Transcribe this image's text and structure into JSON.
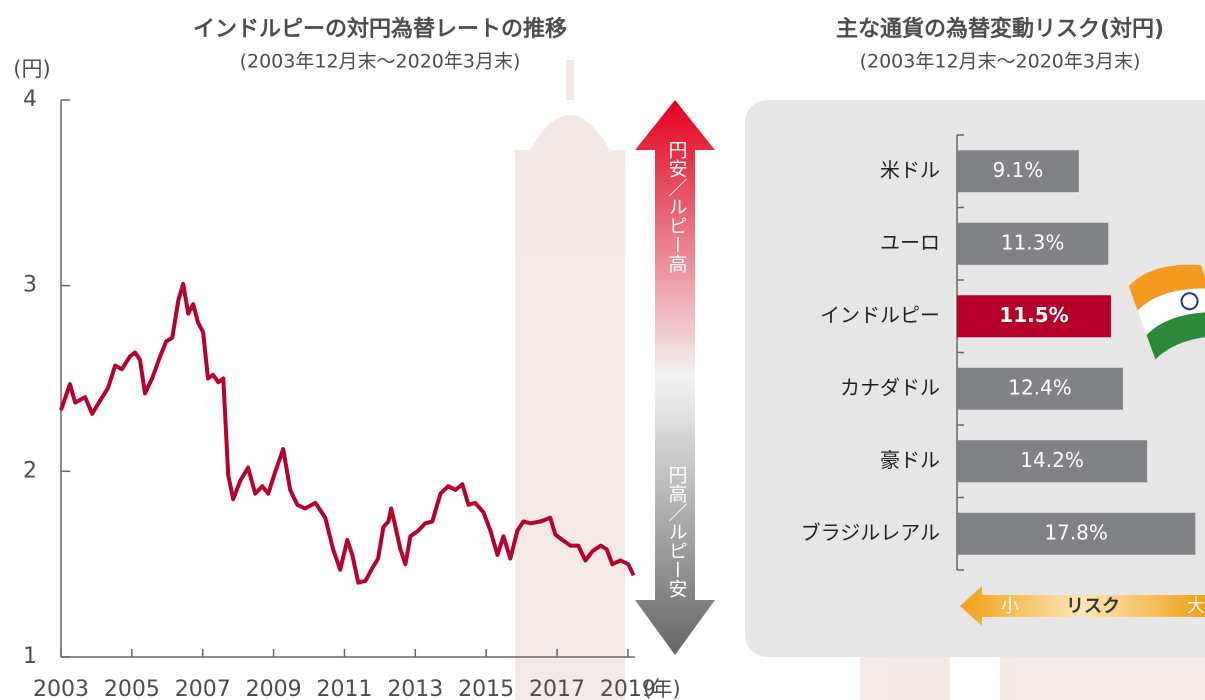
{
  "chart_data": [
    {
      "type": "line",
      "title": "インドルピーの対円為替レートの推移",
      "subtitle": "(2003年12月末～2020年3月末)",
      "y_label": "(円)",
      "x_label": "(年)",
      "color": "#b8002e",
      "x": [
        2003.0,
        2003.25,
        2003.4,
        2003.68,
        2003.88,
        2004.1,
        2004.33,
        2004.53,
        2004.72,
        2004.95,
        2005.09,
        2005.23,
        2005.37,
        2005.57,
        2005.8,
        2005.97,
        2006.14,
        2006.31,
        2006.45,
        2006.59,
        2006.73,
        2006.87,
        2007.01,
        2007.15,
        2007.29,
        2007.44,
        2007.58,
        2007.72,
        2007.86,
        2008.06,
        2008.28,
        2008.48,
        2008.68,
        2008.85,
        2009.05,
        2009.27,
        2009.47,
        2009.67,
        2009.89,
        2010.18,
        2010.46,
        2010.68,
        2010.88,
        2011.08,
        2011.22,
        2011.39,
        2011.59,
        2011.79,
        2011.95,
        2012.1,
        2012.24,
        2012.32,
        2012.44,
        2012.58,
        2012.72,
        2012.86,
        2013.08,
        2013.28,
        2013.48,
        2013.71,
        2013.93,
        2014.13,
        2014.33,
        2014.5,
        2014.69,
        2014.92,
        2015.12,
        2015.32,
        2015.49,
        2015.68,
        2015.88,
        2016.05,
        2016.25,
        2016.53,
        2016.81,
        2016.95,
        2017.15,
        2017.38,
        2017.6,
        2017.8,
        2018.0,
        2018.23,
        2018.4,
        2018.56,
        2018.79,
        2019.01,
        2019.16
      ],
      "values": [
        2.33,
        2.47,
        2.37,
        2.4,
        2.31,
        2.38,
        2.45,
        2.57,
        2.55,
        2.62,
        2.64,
        2.6,
        2.42,
        2.5,
        2.62,
        2.7,
        2.72,
        2.92,
        3.01,
        2.85,
        2.9,
        2.8,
        2.75,
        2.5,
        2.52,
        2.48,
        2.5,
        1.98,
        1.85,
        1.95,
        2.02,
        1.88,
        1.92,
        1.88,
        2.0,
        2.12,
        1.9,
        1.82,
        1.8,
        1.83,
        1.75,
        1.58,
        1.47,
        1.63,
        1.55,
        1.4,
        1.41,
        1.48,
        1.53,
        1.7,
        1.73,
        1.8,
        1.7,
        1.58,
        1.5,
        1.65,
        1.68,
        1.72,
        1.73,
        1.88,
        1.92,
        1.9,
        1.93,
        1.82,
        1.83,
        1.78,
        1.68,
        1.55,
        1.65,
        1.53,
        1.68,
        1.73,
        1.72,
        1.73,
        1.75,
        1.66,
        1.63,
        1.6,
        1.6,
        1.52,
        1.57,
        1.6,
        1.58,
        1.5,
        1.52,
        1.5,
        1.44
      ],
      "xlim": [
        2003,
        2019.2
      ],
      "xticks": [
        2003,
        2005,
        2007,
        2009,
        2011,
        2013,
        2015,
        2017,
        2019
      ],
      "ylim": [
        1,
        4
      ],
      "yticks": [
        1,
        2,
        3,
        4
      ],
      "annotations": [
        "円安／ルピー高",
        "円高／ルピー安"
      ]
    },
    {
      "type": "hbar",
      "title": "主な通貨の為替変動リスク(対円)",
      "subtitle": "(2003年12月末～2020年3月末)",
      "categories": [
        "米ドル",
        "ユーロ",
        "インドルピー",
        "カナダドル",
        "豪ドル",
        "ブラジルレアル"
      ],
      "values": [
        9.1,
        11.3,
        11.5,
        12.4,
        14.2,
        17.8
      ],
      "value_labels": [
        "9.1%",
        "11.3%",
        "11.5%",
        "12.4%",
        "14.2%",
        "17.8%"
      ],
      "colors": [
        "#808285",
        "#808285",
        "#b5002a",
        "#808285",
        "#808285",
        "#808285"
      ],
      "highlight_color": "#b5002a",
      "xlim": [
        0,
        18
      ],
      "risk_scale": [
        "小",
        "リスク",
        "大"
      ]
    }
  ]
}
